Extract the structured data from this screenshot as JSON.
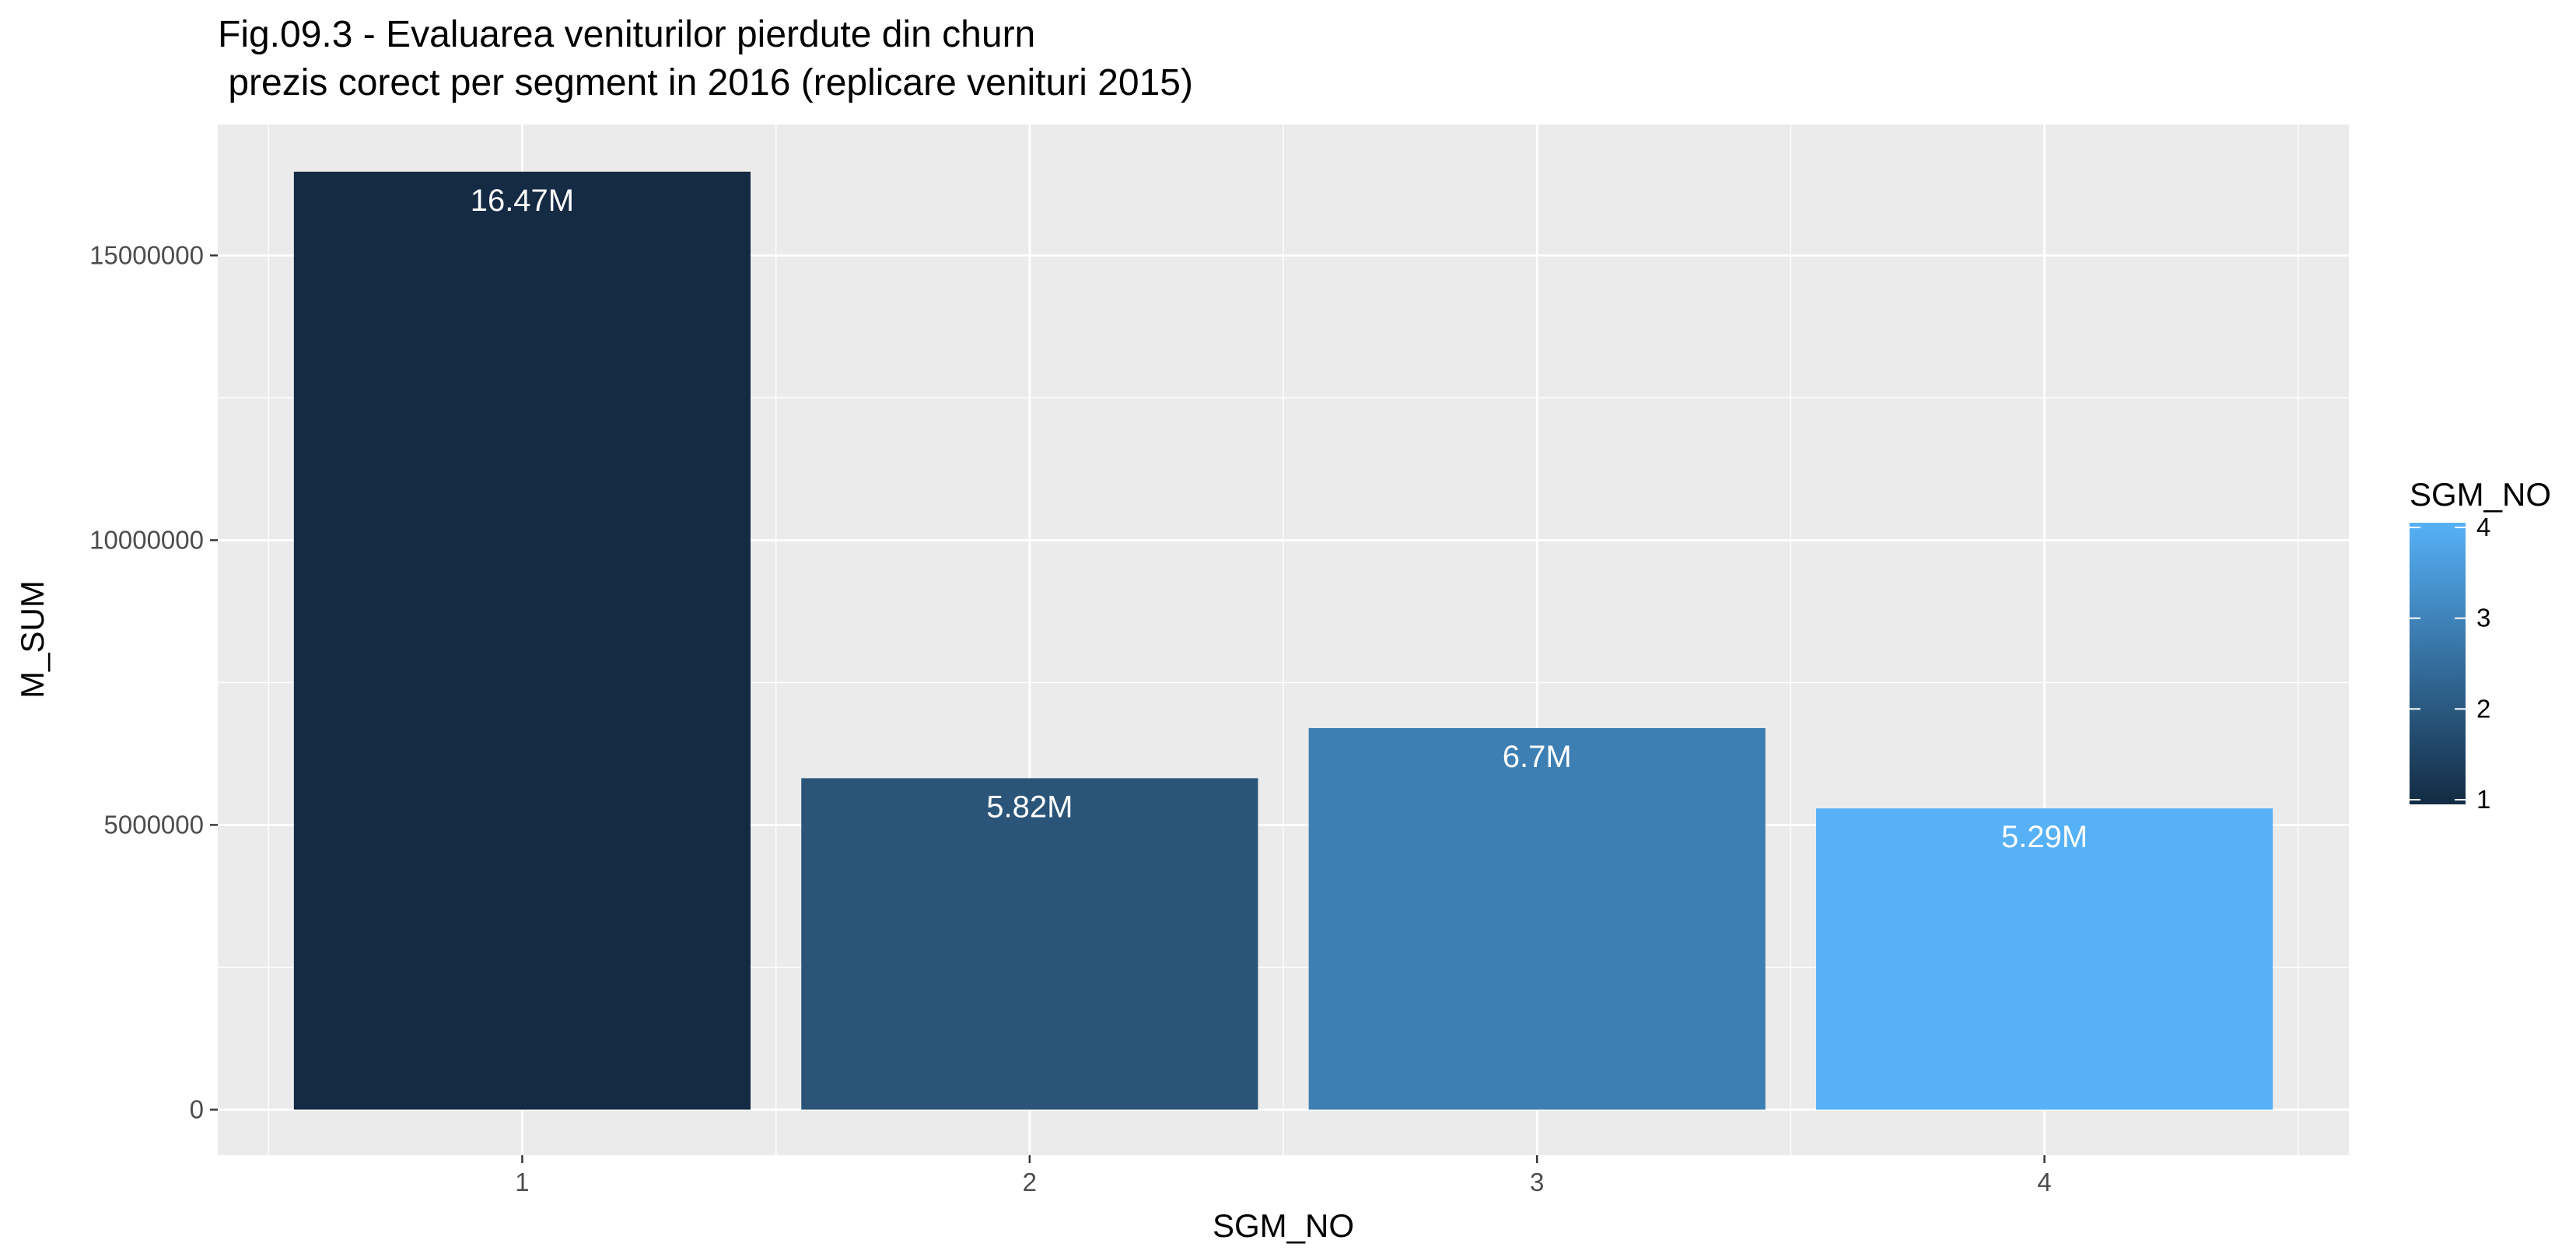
{
  "chart_data": {
    "type": "bar",
    "title": "Fig.09.3 - Evaluarea veniturilor pierdute din churn",
    "subtitle": " prezis corect per segment in 2016 (replicare venituri 2015)",
    "xlabel": "SGM_NO",
    "ylabel": "M_SUM",
    "categories": [
      "1",
      "2",
      "3",
      "4"
    ],
    "values": [
      16470000,
      5820000,
      6700000,
      5290000
    ],
    "data_labels": [
      "16.47M",
      "5.82M",
      "6.7M",
      "5.29M"
    ],
    "ylim": [
      -800000,
      17300000
    ],
    "y_ticks": [
      0,
      5000000,
      10000000,
      15000000
    ],
    "y_tick_labels": [
      "0",
      "5000000",
      "10000000",
      "15000000"
    ],
    "grid": true,
    "legend": {
      "title": "SGM_NO",
      "placement": "right",
      "type": "colorbar",
      "range": [
        1,
        4
      ],
      "ticks": [
        "1",
        "2",
        "3",
        "4"
      ],
      "low_color": "#132B43",
      "high_color": "#56B1F7"
    },
    "bar_colors": [
      "#152A43",
      "#2A5579",
      "#3D7FB3",
      "#56B1F7"
    ],
    "panel_color": "#EBEBEB",
    "grid_color": "#FFFFFF"
  }
}
